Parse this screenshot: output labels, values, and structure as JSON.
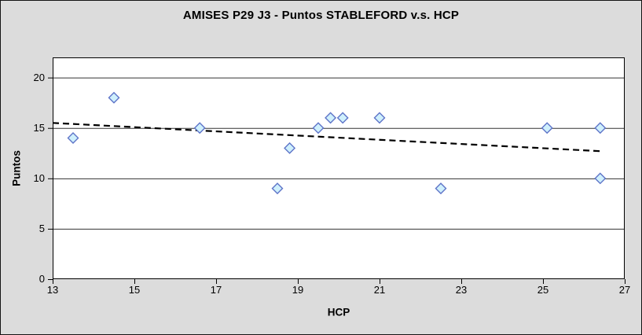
{
  "chart_data": {
    "type": "scatter",
    "title": "AMISES P29 J3 - Puntos STABLEFORD v.s. HCP",
    "xlabel": "HCP",
    "ylabel": "Puntos",
    "xlim": [
      13,
      27
    ],
    "ylim": [
      0,
      22
    ],
    "x_ticks": [
      13,
      15,
      17,
      19,
      21,
      23,
      25,
      27
    ],
    "y_ticks": [
      0,
      5,
      10,
      15,
      20
    ],
    "grid": "horizontal-only",
    "legend": "none",
    "series": [
      {
        "name": "Puntos STABLEFORD",
        "marker": "diamond",
        "points": [
          {
            "hcp": 13.5,
            "puntos": 14
          },
          {
            "hcp": 14.5,
            "puntos": 18
          },
          {
            "hcp": 16.6,
            "puntos": 15
          },
          {
            "hcp": 18.5,
            "puntos": 9
          },
          {
            "hcp": 18.8,
            "puntos": 13
          },
          {
            "hcp": 19.5,
            "puntos": 15
          },
          {
            "hcp": 19.8,
            "puntos": 16
          },
          {
            "hcp": 20.1,
            "puntos": 16
          },
          {
            "hcp": 21.0,
            "puntos": 16
          },
          {
            "hcp": 22.5,
            "puntos": 9
          },
          {
            "hcp": 25.1,
            "puntos": 15
          },
          {
            "hcp": 26.4,
            "puntos": 15
          },
          {
            "hcp": 26.4,
            "puntos": 10
          }
        ]
      }
    ],
    "trendline": {
      "style": "dashed",
      "x1": 13.0,
      "y1": 15.5,
      "x2": 26.4,
      "y2": 12.7
    },
    "colors": {
      "background": "#dcdcdc",
      "plot_background": "#ffffff",
      "gridline": "#333333",
      "axis": "#000000",
      "marker_fill": "#cff0fc",
      "marker_stroke": "#5e74c8",
      "trendline": "#000000",
      "text": "#000000"
    }
  }
}
